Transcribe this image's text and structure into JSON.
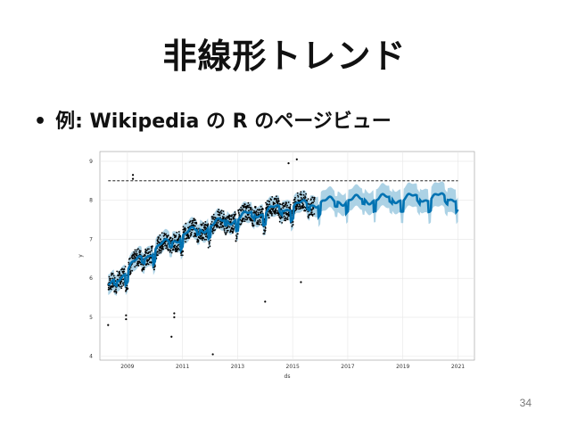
{
  "slide": {
    "title": "非線形トレンド",
    "bullet_marker": "•",
    "bullet_text": "例: Wikipedia の R のページビュー",
    "page_number": "34"
  },
  "colors": {
    "forecast_line": "#0072B2",
    "interval_band": "#9ecae1",
    "points": "#000000",
    "cap_line": "#000000",
    "grid": "#e6e6e6"
  },
  "chart_data": {
    "type": "line",
    "title": "",
    "xlabel": "ds",
    "ylabel": "y",
    "x_ticks": [
      "2009",
      "2011",
      "2013",
      "2015",
      "2017",
      "2019",
      "2021"
    ],
    "y_ticks": [
      "4",
      "5",
      "6",
      "7",
      "8",
      "9"
    ],
    "xlim": [
      2008.0,
      2021.6
    ],
    "ylim": [
      3.9,
      9.25
    ],
    "grid": true,
    "cap": 8.5,
    "history_end": 2015.8,
    "forecast_end": 2021.0,
    "trend": [
      {
        "x": 2008.3,
        "y": 5.75
      },
      {
        "x": 2009.0,
        "y": 6.25
      },
      {
        "x": 2010.0,
        "y": 6.75
      },
      {
        "x": 2011.0,
        "y": 7.1
      },
      {
        "x": 2012.0,
        "y": 7.35
      },
      {
        "x": 2013.0,
        "y": 7.55
      },
      {
        "x": 2014.0,
        "y": 7.72
      },
      {
        "x": 2015.0,
        "y": 7.85
      },
      {
        "x": 2016.0,
        "y": 7.95
      },
      {
        "x": 2017.0,
        "y": 8.0
      },
      {
        "x": 2018.0,
        "y": 8.03
      },
      {
        "x": 2019.0,
        "y": 8.05
      },
      {
        "x": 2020.0,
        "y": 8.07
      },
      {
        "x": 2021.0,
        "y": 8.08
      }
    ],
    "outliers": [
      {
        "x": 2009.2,
        "y": 8.65
      },
      {
        "x": 2009.2,
        "y": 8.55
      },
      {
        "x": 2014.85,
        "y": 8.95
      },
      {
        "x": 2015.15,
        "y": 9.05
      },
      {
        "x": 2012.1,
        "y": 4.05
      },
      {
        "x": 2010.6,
        "y": 4.5
      },
      {
        "x": 2010.7,
        "y": 5.1
      },
      {
        "x": 2010.7,
        "y": 5.0
      },
      {
        "x": 2008.3,
        "y": 4.8
      },
      {
        "x": 2015.3,
        "y": 5.9
      },
      {
        "x": 2014.0,
        "y": 5.4
      },
      {
        "x": 2008.95,
        "y": 4.95
      },
      {
        "x": 2008.95,
        "y": 5.05
      }
    ]
  }
}
